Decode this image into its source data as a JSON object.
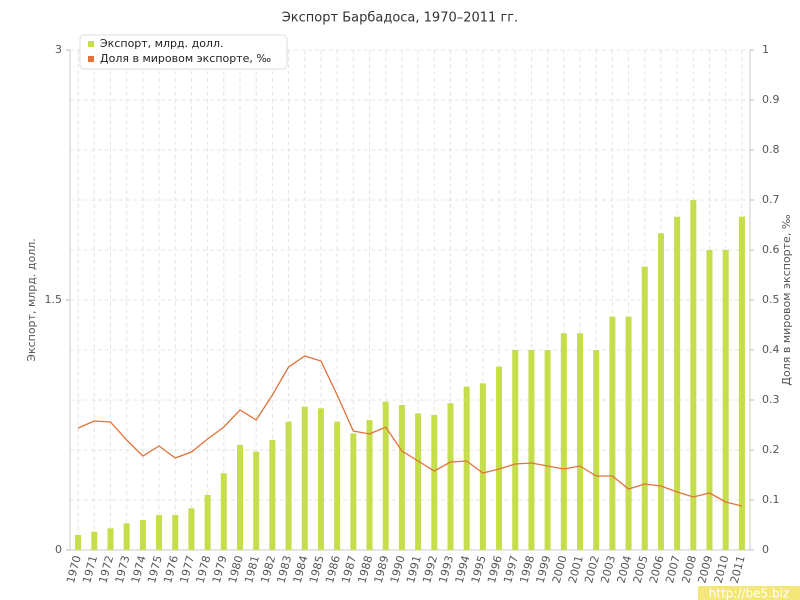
{
  "chart_data": {
    "type": "bar-line",
    "title": "Экспорт Барбадоса, 1970–2011 гг.",
    "y_label": "Экспорт, млрд. долл.",
    "y2_label": "Доля в мировом экспорте, ‰",
    "watermark": "http://be5.biz",
    "categories": [
      "1970",
      "1971",
      "1972",
      "1973",
      "1974",
      "1975",
      "1976",
      "1977",
      "1978",
      "1979",
      "1980",
      "1981",
      "1982",
      "1983",
      "1984",
      "1985",
      "1986",
      "1987",
      "1988",
      "1989",
      "1990",
      "1991",
      "1992",
      "1993",
      "1994",
      "1995",
      "1996",
      "1997",
      "1998",
      "1999",
      "2000",
      "2001",
      "2002",
      "2003",
      "2004",
      "2005",
      "2006",
      "2007",
      "2008",
      "2009",
      "2010",
      "2011"
    ],
    "series": [
      {
        "name": "Экспорт, млрд. долл.",
        "color": "#c5de4b",
        "type": "bar",
        "values": [
          0.09,
          0.11,
          0.13,
          0.16,
          0.18,
          0.21,
          0.21,
          0.25,
          0.33,
          0.46,
          0.63,
          0.59,
          0.66,
          0.77,
          0.86,
          0.85,
          0.77,
          0.7,
          0.78,
          0.89,
          0.87,
          0.82,
          0.81,
          0.88,
          0.98,
          1.0,
          1.1,
          1.2,
          1.2,
          1.2,
          1.3,
          1.3,
          1.2,
          1.4,
          1.4,
          1.7,
          1.9,
          2.0,
          2.1,
          1.8,
          1.8,
          2.0
        ]
      },
      {
        "name": "Доля в мировом экспорте, ‰",
        "color": "#e0733a",
        "type": "line",
        "axis": "y2",
        "values": [
          0.244,
          0.258,
          0.256,
          0.22,
          0.188,
          0.208,
          0.184,
          0.196,
          0.222,
          0.246,
          0.28,
          0.26,
          0.31,
          0.366,
          0.388,
          0.378,
          0.31,
          0.238,
          0.232,
          0.246,
          0.198,
          0.178,
          0.158,
          0.176,
          0.178,
          0.154,
          0.162,
          0.172,
          0.174,
          0.168,
          0.162,
          0.168,
          0.148,
          0.148,
          0.122,
          0.132,
          0.128,
          0.116,
          0.106,
          0.114,
          0.096,
          0.088
        ]
      }
    ],
    "ylim": [
      0,
      3
    ],
    "yticks": [
      0,
      1.5,
      3
    ],
    "y2lim": [
      0,
      1
    ],
    "y2ticks": [
      0,
      0.1,
      0.2,
      0.3,
      0.4,
      0.5,
      0.6,
      0.7,
      0.8,
      0.9,
      1
    ],
    "grid": true,
    "legend": "top-left"
  }
}
